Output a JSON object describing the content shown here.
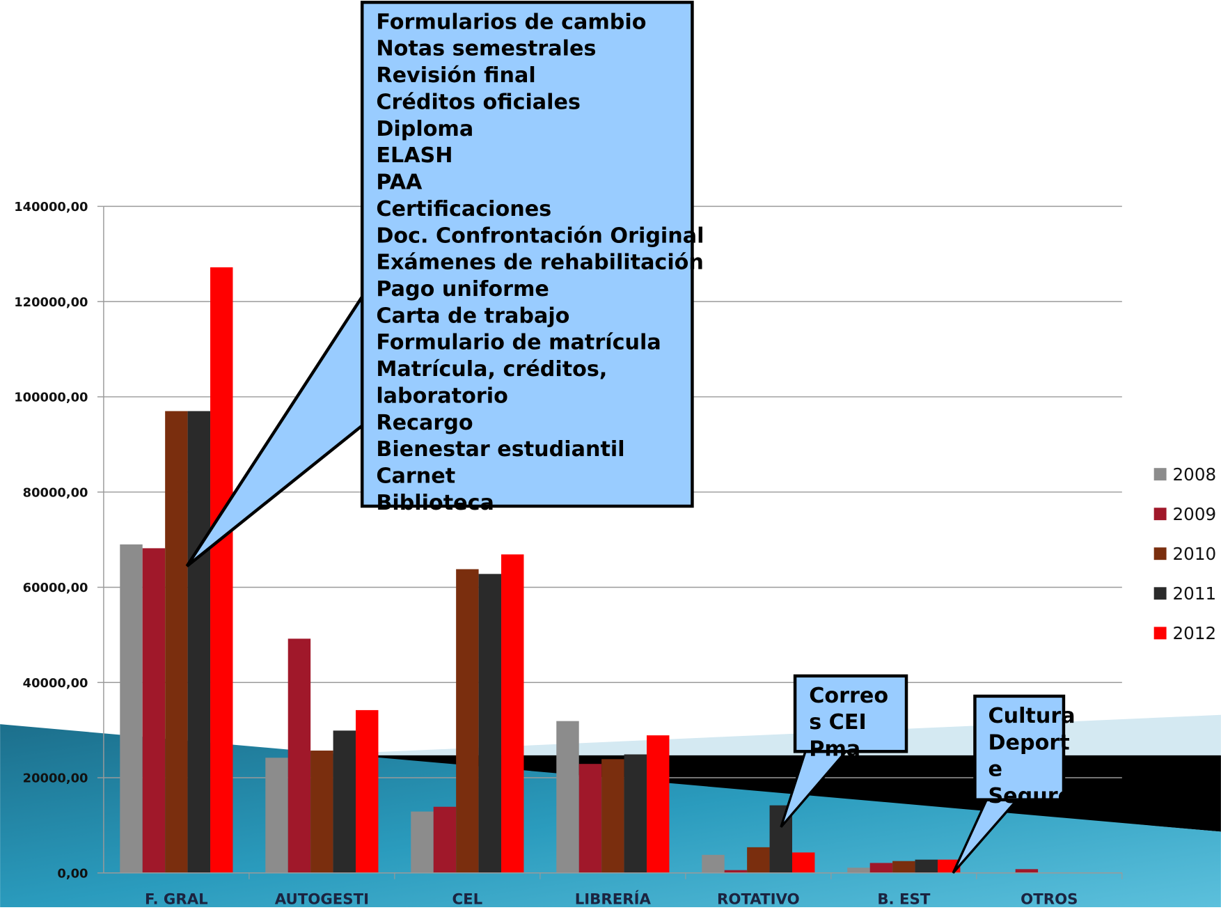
{
  "chart_data": {
    "type": "bar",
    "categories": [
      "F. GRAL",
      "AUTOGESTI",
      "CEL",
      "LIBRERÍA",
      "ROTATIVO",
      "B. EST",
      "OTROS"
    ],
    "series": [
      {
        "name": "2008",
        "color": "#8c8c8c",
        "values": [
          69000,
          24200,
          12900,
          31900,
          3800,
          1100,
          0
        ]
      },
      {
        "name": "2009",
        "color": "#a0182a",
        "values": [
          68200,
          49200,
          13900,
          22900,
          600,
          2100,
          800
        ]
      },
      {
        "name": "2010",
        "color": "#7a2e0e",
        "values": [
          97000,
          25700,
          63800,
          23900,
          5400,
          2500,
          0
        ]
      },
      {
        "name": "2011",
        "color": "#2a2a2a",
        "values": [
          97000,
          29900,
          62800,
          24900,
          14200,
          2800,
          0
        ]
      },
      {
        "name": "2012",
        "color": "#ff0000",
        "values": [
          127200,
          34200,
          66900,
          28900,
          4300,
          2800,
          0
        ]
      }
    ],
    "ylim": [
      0,
      140000
    ],
    "yticks": [
      {
        "value": 0,
        "label": "0,00"
      },
      {
        "value": 20000,
        "label": "20000,00"
      },
      {
        "value": 40000,
        "label": "40000,00"
      },
      {
        "value": 60000,
        "label": "60000,00"
      },
      {
        "value": 80000,
        "label": "80000,00"
      },
      {
        "value": 100000,
        "label": "100000,00"
      },
      {
        "value": 120000,
        "label": "120000,00"
      },
      {
        "value": 140000,
        "label": "140000,00"
      }
    ],
    "grid": true,
    "legend": "right",
    "annotations": [
      {
        "lines": [
          "Formularios de cambio",
          "Notas semestrales",
          "Revisión final",
          "Créditos oficiales",
          "Diploma",
          "ELASH",
          "PAA",
          "Certificaciones",
          "Doc. Confrontación Original",
          "Exámenes de rehabilitación",
          "Pago uniforme",
          "Carta de trabajo",
          "Formulario de matrícula",
          "Matrícula, créditos,",
          "laboratorio",
          "Recargo",
          "Bienestar estudiantil",
          "Carnet",
          "Biblioteca"
        ],
        "red_lines": [
          13,
          14
        ]
      },
      {
        "lines": [
          "Correo",
          "s CEI",
          "Pma"
        ]
      },
      {
        "lines": [
          "Cultura",
          "Deport",
          "e",
          "Seguro"
        ]
      }
    ]
  }
}
